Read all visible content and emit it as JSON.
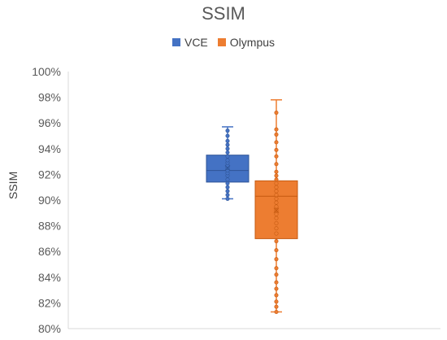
{
  "chart_data": {
    "type": "box",
    "title": "SSIM",
    "ylabel": "SSIM",
    "xlabel": "",
    "ylim": [
      0.8,
      1.0
    ],
    "y_ticks": [
      "80%",
      "82%",
      "84%",
      "86%",
      "88%",
      "90%",
      "92%",
      "94%",
      "96%",
      "98%",
      "100%"
    ],
    "legend_position": "top",
    "grid": false,
    "series": [
      {
        "name": "VCE",
        "color": "#4472C4",
        "min": 0.901,
        "q1": 0.914,
        "median": 0.923,
        "q3": 0.935,
        "max": 0.957,
        "mean": 0.925,
        "points": [
          0.901,
          0.904,
          0.907,
          0.91,
          0.913,
          0.916,
          0.919,
          0.921,
          0.923,
          0.925,
          0.927,
          0.929,
          0.931,
          0.934,
          0.937,
          0.94,
          0.943,
          0.946,
          0.95,
          0.954
        ]
      },
      {
        "name": "Olympus",
        "color": "#ED7D31",
        "min": 0.813,
        "q1": 0.87,
        "median": 0.903,
        "q3": 0.915,
        "max": 0.978,
        "mean": 0.892,
        "points": [
          0.813,
          0.817,
          0.821,
          0.826,
          0.831,
          0.836,
          0.842,
          0.847,
          0.854,
          0.861,
          0.868,
          0.874,
          0.878,
          0.882,
          0.886,
          0.889,
          0.892,
          0.895,
          0.898,
          0.901,
          0.904,
          0.907,
          0.91,
          0.913,
          0.916,
          0.919,
          0.922,
          0.928,
          0.934,
          0.939,
          0.945,
          0.951,
          0.955,
          0.968
        ]
      }
    ]
  }
}
